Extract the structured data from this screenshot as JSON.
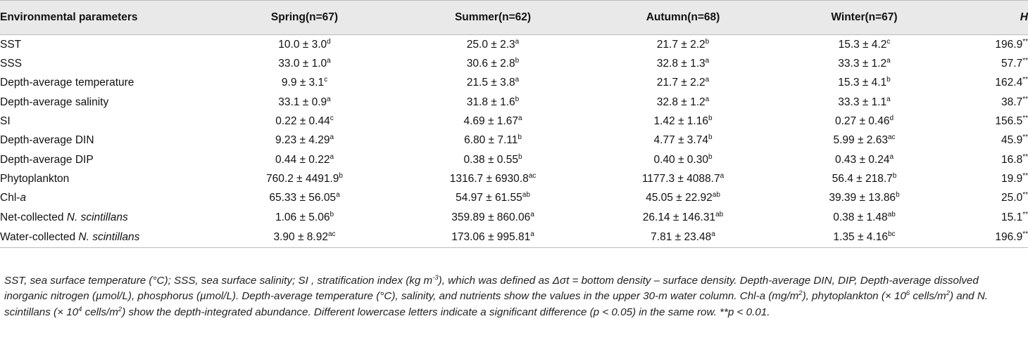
{
  "table": {
    "headers": {
      "param": "Environmental parameters",
      "spring": "Spring(n=67)",
      "summer": "Summer(n=62)",
      "autumn": "Autumn(n=68)",
      "winter": "Winter(n=67)",
      "h": "H"
    },
    "rows": [
      {
        "name": "SST",
        "name_italic": "",
        "cells": [
          {
            "v": "10.0 ± 3.0",
            "s": "d"
          },
          {
            "v": "25.0 ± 2.3",
            "s": "a"
          },
          {
            "v": "21.7 ± 2.2",
            "s": "b"
          },
          {
            "v": "15.3 ± 4.2",
            "s": "c"
          }
        ],
        "h": "196.9",
        "h_sig": "**"
      },
      {
        "name": "SSS",
        "name_italic": "",
        "cells": [
          {
            "v": "33.0 ± 1.0",
            "s": "a"
          },
          {
            "v": "30.6 ± 2.8",
            "s": "b"
          },
          {
            "v": "32.8 ± 1.3",
            "s": "a"
          },
          {
            "v": "33.3 ± 1.2",
            "s": "a"
          }
        ],
        "h": "57.7",
        "h_sig": "**"
      },
      {
        "name": "Depth-average temperature",
        "name_italic": "",
        "cells": [
          {
            "v": "9.9 ± 3.1",
            "s": "c"
          },
          {
            "v": "21.5 ± 3.8",
            "s": "a"
          },
          {
            "v": "21.7 ± 2.2",
            "s": "a"
          },
          {
            "v": "15.3 ± 4.1",
            "s": "b"
          }
        ],
        "h": "162.4",
        "h_sig": "**"
      },
      {
        "name": "Depth-average salinity",
        "name_italic": "",
        "cells": [
          {
            "v": "33.1 ± 0.9",
            "s": "a"
          },
          {
            "v": "31.8 ± 1.6",
            "s": "b"
          },
          {
            "v": "32.8 ± 1.2",
            "s": "a"
          },
          {
            "v": "33.3 ± 1.1",
            "s": "a"
          }
        ],
        "h": "38.7",
        "h_sig": "**"
      },
      {
        "name": "SI",
        "name_italic": "",
        "cells": [
          {
            "v": "0.22 ± 0.44",
            "s": "c"
          },
          {
            "v": "4.69 ± 1.67",
            "s": "a"
          },
          {
            "v": "1.42 ± 1.16",
            "s": "b"
          },
          {
            "v": "0.27 ± 0.46",
            "s": "d"
          }
        ],
        "h": "156.5",
        "h_sig": "**"
      },
      {
        "name": "Depth-average DIN",
        "name_italic": "",
        "cells": [
          {
            "v": "9.23 ± 4.29",
            "s": "a"
          },
          {
            "v": "6.80 ± 7.11",
            "s": "b"
          },
          {
            "v": "4.77 ± 3.74",
            "s": "b"
          },
          {
            "v": "5.99 ± 2.63",
            "s": "ac"
          }
        ],
        "h": "45.9",
        "h_sig": "**"
      },
      {
        "name": "Depth-average DIP",
        "name_italic": "",
        "cells": [
          {
            "v": "0.44 ± 0.22",
            "s": "a"
          },
          {
            "v": "0.38 ± 0.55",
            "s": "b"
          },
          {
            "v": "0.40 ± 0.30",
            "s": "b"
          },
          {
            "v": "0.43 ± 0.24",
            "s": "a"
          }
        ],
        "h": "16.8",
        "h_sig": "**"
      },
      {
        "name": "Phytoplankton",
        "name_italic": "",
        "cells": [
          {
            "v": "760.2 ± 4491.9",
            "s": "b"
          },
          {
            "v": "1316.7 ± 6930.8",
            "s": "ac"
          },
          {
            "v": "1177.3 ± 4088.7",
            "s": "a"
          },
          {
            "v": "56.4 ± 218.7",
            "s": "b"
          }
        ],
        "h": "19.9",
        "h_sig": "**"
      },
      {
        "name": "Chl-",
        "name_italic": "a",
        "cells": [
          {
            "v": "65.33 ± 56.05",
            "s": "a"
          },
          {
            "v": "54.97 ± 61.55",
            "s": "ab"
          },
          {
            "v": "45.05 ± 22.92",
            "s": "ab"
          },
          {
            "v": "39.39 ± 13.86",
            "s": "b"
          }
        ],
        "h": "25.0",
        "h_sig": "**"
      },
      {
        "name": "Net-collected ",
        "name_italic": "N. scintillans",
        "cells": [
          {
            "v": "1.06 ± 5.06",
            "s": "b"
          },
          {
            "v": "359.89 ± 860.06",
            "s": "a"
          },
          {
            "v": "26.14 ± 146.31",
            "s": "ab"
          },
          {
            "v": "0.38 ± 1.48",
            "s": "ab"
          }
        ],
        "h": "15.1",
        "h_sig": "**"
      },
      {
        "name": "Water-collected ",
        "name_italic": "N. scintillans",
        "cells": [
          {
            "v": "3.90 ± 8.92",
            "s": "ac"
          },
          {
            "v": "173.06 ± 995.81",
            "s": "a"
          },
          {
            "v": "7.81 ± 23.48",
            "s": "a"
          },
          {
            "v": "1.35 ± 4.16",
            "s": "bc"
          }
        ],
        "h": "196.9",
        "h_sig": "**"
      }
    ]
  },
  "footnote": {
    "p1": "SST, sea surface temperature (°C); SSS, sea surface salinity; SI , stratification index (kg m",
    "p1_sup": "-3",
    "p2": "), which was defined as Δσt = bottom density – surface density. Depth-average DIN, DIP, Depth-average dissolved inorganic nitrogen (µmol/L), phosphorus (µmol/L). Depth-average temperature (°C), salinity, and nutrients show the values in the upper 30-m water column. Chl-a (mg/m",
    "p2_sup": "2",
    "p3": "), phytoplankton (× 10",
    "p3_sup": "6",
    "p4": " cells/m",
    "p4_sup": "2",
    "p5": ") and N. scintillans (× 10",
    "p5_sup": "4",
    "p6": " cells/m",
    "p6_sup": "2",
    "p7": ") show the depth-integrated abundance. Different lowercase letters indicate a significant difference (p < 0.05) in the same row. **p < 0.01."
  }
}
